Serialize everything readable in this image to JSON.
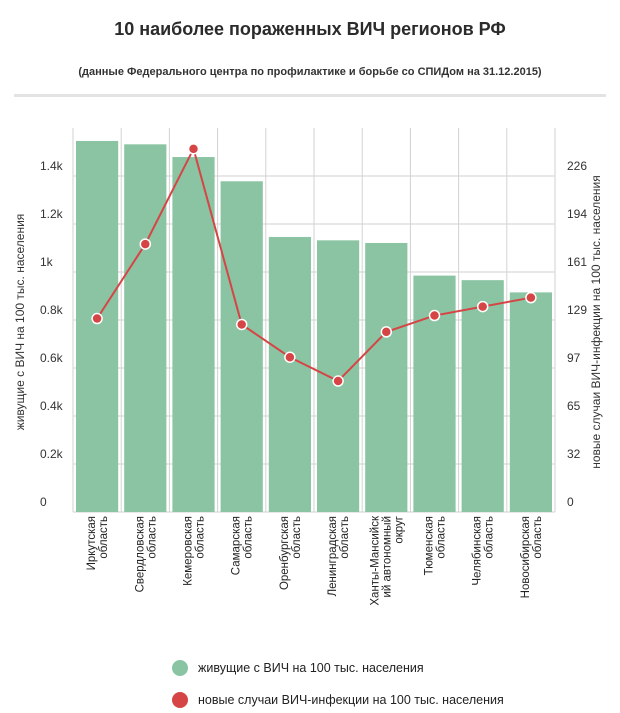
{
  "chart_data": {
    "type": "bar",
    "title": "10 наиболее пораженных ВИЧ регионов РФ",
    "subtitle": "(данные Федерального центра по профилактике и борьбе со СПИДом на 31.12.2015)",
    "categories": [
      "Иркутская область",
      "Свердловская область",
      "Кемеровская область",
      "Самарская область",
      "Оренбургская область",
      "Ленинградская область",
      "Ханты-Мансийский автономный округ",
      "Тюменская область",
      "Челябинская область",
      "Новосибирская область"
    ],
    "category_lines": [
      [
        "Иркутская",
        "область"
      ],
      [
        "Свердловская",
        "область"
      ],
      [
        "Кемеровская",
        "область"
      ],
      [
        "Самарская",
        "область"
      ],
      [
        "Оренбургская",
        "область"
      ],
      [
        "Ленинградская",
        "область"
      ],
      [
        "Ханты-Мансийск",
        "ий автономный",
        "округ"
      ],
      [
        "Тюменская",
        "область"
      ],
      [
        "Челябинская",
        "область"
      ],
      [
        "Новосибирская",
        "область"
      ]
    ],
    "series": [
      {
        "name": "живущие с ВИЧ на 100 тыс. населения",
        "type": "bar",
        "axis": "left",
        "color": "#8ac4a3",
        "values": [
          1546,
          1532,
          1479,
          1378,
          1146,
          1132,
          1121,
          985,
          966,
          915
        ]
      },
      {
        "name": "новые случаи ВИЧ-инфекции на 100 тыс. населения",
        "type": "line",
        "axis": "right",
        "color": "#d64545",
        "values": [
          130,
          180,
          244,
          126,
          104,
          88,
          121,
          132,
          138,
          144
        ]
      }
    ],
    "ylabel": "живущие с ВИЧ на 100 тыс. населения",
    "y2label": "новые случаи ВИЧ-инфекции на 100 тыс. населения",
    "ylim": [
      0,
      1600
    ],
    "y2lim": [
      0,
      258
    ],
    "yticks": [
      "0",
      "0.2k",
      "0.4k",
      "0.6k",
      "0.8k",
      "1k",
      "1.2k",
      "1.4k"
    ],
    "y2ticks": [
      "0",
      "32",
      "65",
      "97",
      "129",
      "161",
      "194",
      "226"
    ],
    "legend_position": "bottom",
    "grid": true
  }
}
